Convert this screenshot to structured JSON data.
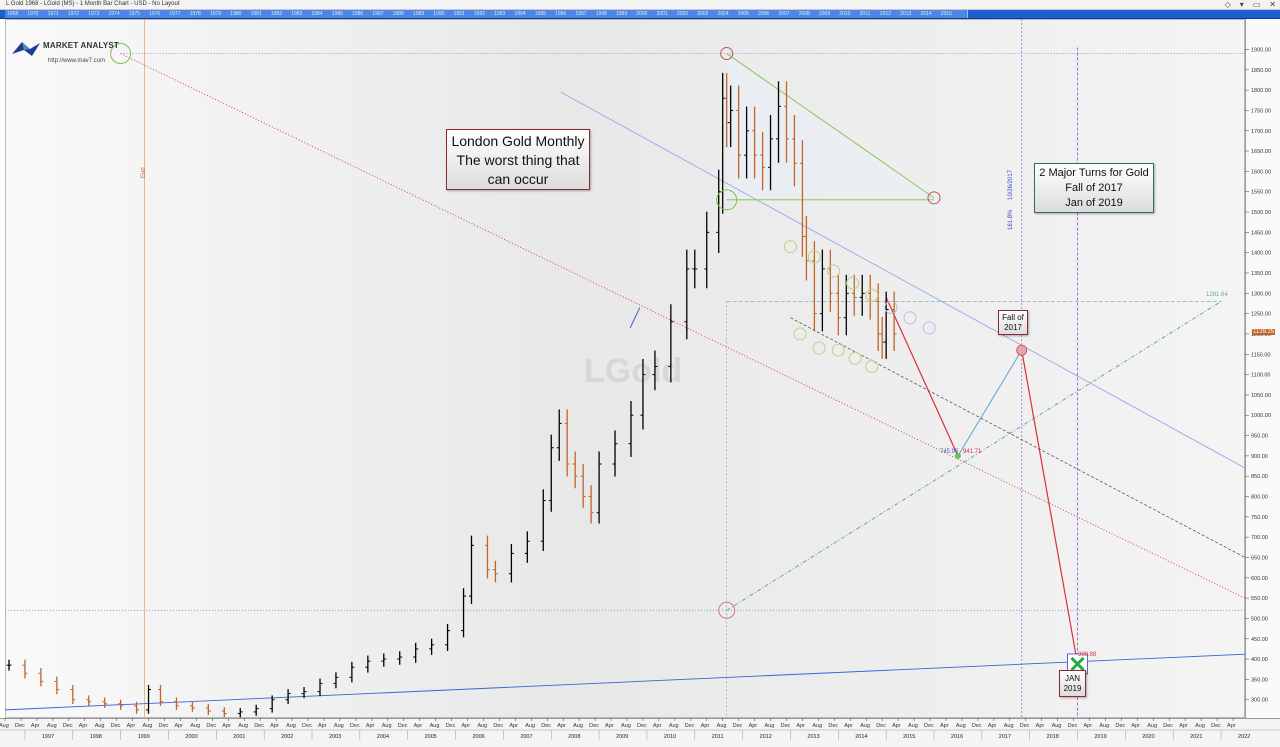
{
  "window": {
    "title": "L Gold   1968 - LGold (MS) - 1 Month Bar Chart - USD - No Layout",
    "controls": [
      "◇",
      "▾",
      "▭",
      "✕"
    ]
  },
  "timeline_strip": [
    "1968",
    "1970",
    "1971",
    "1972",
    "1973",
    "1974",
    "1975",
    "1976",
    "1977",
    "1978",
    "1979",
    "1980",
    "1981",
    "1982",
    "1983",
    "1984",
    "1985",
    "1986",
    "1987",
    "1988",
    "1989",
    "1990",
    "1991",
    "1992",
    "1993",
    "1994",
    "1995",
    "1996",
    "1997",
    "1998",
    "1999",
    "2000",
    "2001",
    "2002",
    "2003",
    "2004",
    "2005",
    "2006",
    "2007",
    "2008",
    "2009",
    "2010",
    "2011",
    "2012",
    "2013",
    "2014",
    "2015"
  ],
  "logo": {
    "text": "MARKET ANALYST",
    "url": "http://www.mav7.com"
  },
  "watermark": "LGold",
  "annotations": {
    "main": "London Gold Monthly\nThe worst thing that\ncan occur",
    "turns": "2 Major Turns for Gold\nFall of 2017\nJan of 2019",
    "fall": "Fall of\n2017",
    "jan": "JAN\n2019"
  },
  "labels": {
    "end": "End",
    "fib_pct": "161.8%",
    "fib_date": "10/26/2017",
    "level_right": "1281.64",
    "low_left": "745.95",
    "low_right": "941.71",
    "price_tag": "1139.25",
    "x_marker": "388.88"
  },
  "colors": {
    "up_bar": "#000000",
    "down_bar": "#c0642b",
    "red_line": "#d9303c",
    "green_line": "#7fbf4a",
    "blue_line": "#3a63d6",
    "teal_line": "#3f9a8c",
    "purple_line": "#9c3fcf"
  },
  "chart_data": {
    "type": "bar",
    "title": "London Gold Monthly",
    "instrument": "LGold (MS)",
    "interval": "1 Month",
    "currency": "USD",
    "y_ticks": [
      300,
      350,
      400,
      450,
      500,
      550,
      600,
      650,
      700,
      750,
      800,
      850,
      900,
      950,
      1000,
      1050,
      1100,
      1150,
      1200,
      1250,
      1300,
      1350,
      1400,
      1450,
      1500,
      1550,
      1600,
      1650,
      1700,
      1750,
      1800,
      1850,
      1900
    ],
    "x_year_labels": [
      "1997",
      "1998",
      "1999",
      "2000",
      "2001",
      "2002",
      "2003",
      "2004",
      "2005",
      "2006",
      "2007",
      "2008",
      "2009",
      "2010",
      "2011",
      "2012",
      "2013",
      "2014",
      "2015",
      "2016",
      "2017",
      "2018",
      "2019",
      "2020",
      "2021",
      "2022"
    ],
    "x_month_labels": [
      "Aug",
      "Dec",
      "Apr"
    ],
    "ylim": [
      255,
      1975
    ],
    "xlim": [
      1996.583,
      2022.5
    ],
    "series": [
      {
        "name": "LGold",
        "x": [
          1996.667,
          1997.0,
          1997.333,
          1997.667,
          1998.0,
          1998.333,
          1998.667,
          1999.0,
          1999.333,
          1999.583,
          1999.833,
          2000.167,
          2000.5,
          2000.833,
          2001.167,
          2001.5,
          2001.833,
          2002.167,
          2002.5,
          2002.833,
          2003.167,
          2003.5,
          2003.833,
          2004.167,
          2004.5,
          2004.833,
          2005.167,
          2005.5,
          2005.833,
          2006.167,
          2006.333,
          2006.667,
          2006.833,
          2007.167,
          2007.5,
          2007.833,
          2008.0,
          2008.167,
          2008.333,
          2008.5,
          2008.667,
          2008.833,
          2009.0,
          2009.333,
          2009.667,
          2009.917,
          2010.167,
          2010.5,
          2010.833,
          2011.0,
          2011.25,
          2011.5,
          2011.583,
          2011.667,
          2011.75,
          2011.917,
          2012.083,
          2012.25,
          2012.417,
          2012.583,
          2012.75,
          2012.917,
          2013.083,
          2013.25,
          2013.333,
          2013.5,
          2013.667,
          2013.833,
          2014.0,
          2014.167,
          2014.333,
          2014.5,
          2014.667,
          2014.833,
          2014.917,
          2015.0,
          2015.167
        ],
        "values": [
          385,
          365,
          345,
          325,
          300,
          295,
          290,
          285,
          275,
          325,
          295,
          285,
          280,
          272,
          266,
          270,
          278,
          300,
          315,
          320,
          340,
          355,
          380,
          395,
          400,
          405,
          425,
          435,
          470,
          555,
          680,
          620,
          610,
          660,
          690,
          790,
          920,
          980,
          880,
          850,
          800,
          760,
          880,
          930,
          1000,
          1100,
          1120,
          1230,
          1360,
          1360,
          1450,
          1550,
          1780,
          1720,
          1750,
          1640,
          1700,
          1640,
          1610,
          1680,
          1760,
          1680,
          1620,
          1440,
          1380,
          1250,
          1360,
          1300,
          1240,
          1300,
          1290,
          1300,
          1280,
          1200,
          1180,
          1260,
          1200
        ]
      }
    ],
    "trendlines": [
      {
        "name": "upper blue trend",
        "from": [
          2008.2,
          1795
        ],
        "to": [
          2022.5,
          870
        ]
      },
      {
        "name": "lower blue support",
        "from": [
          1996.583,
          275
        ],
        "to": [
          2022.5,
          412
        ]
      },
      {
        "name": "red trend",
        "from": [
          1999.0,
          1890
        ],
        "to": [
          2022.5,
          550
        ]
      },
      {
        "name": "green triangle top",
        "from": [
          2011.667,
          1890
        ],
        "to": [
          2016.0,
          1535
        ]
      },
      {
        "name": "green triangle base",
        "from": [
          2011.667,
          1530
        ],
        "to": [
          2016.0,
          1530
        ]
      },
      {
        "name": "teal cycle up",
        "from": [
          2011.667,
          520
        ],
        "to": [
          2022.0,
          1280
        ]
      },
      {
        "name": "projection to fall 2017",
        "from": [
          2016.5,
          900
        ],
        "to": [
          2017.833,
          1160
        ]
      },
      {
        "name": "projection to jan 2019",
        "from": [
          2017.833,
          1160
        ],
        "to": [
          2019.0,
          388
        ]
      },
      {
        "name": "drop to 2016 low",
        "from": [
          2015.0,
          1290
        ],
        "to": [
          2016.5,
          900
        ]
      }
    ],
    "legend": "none",
    "grid": false
  }
}
